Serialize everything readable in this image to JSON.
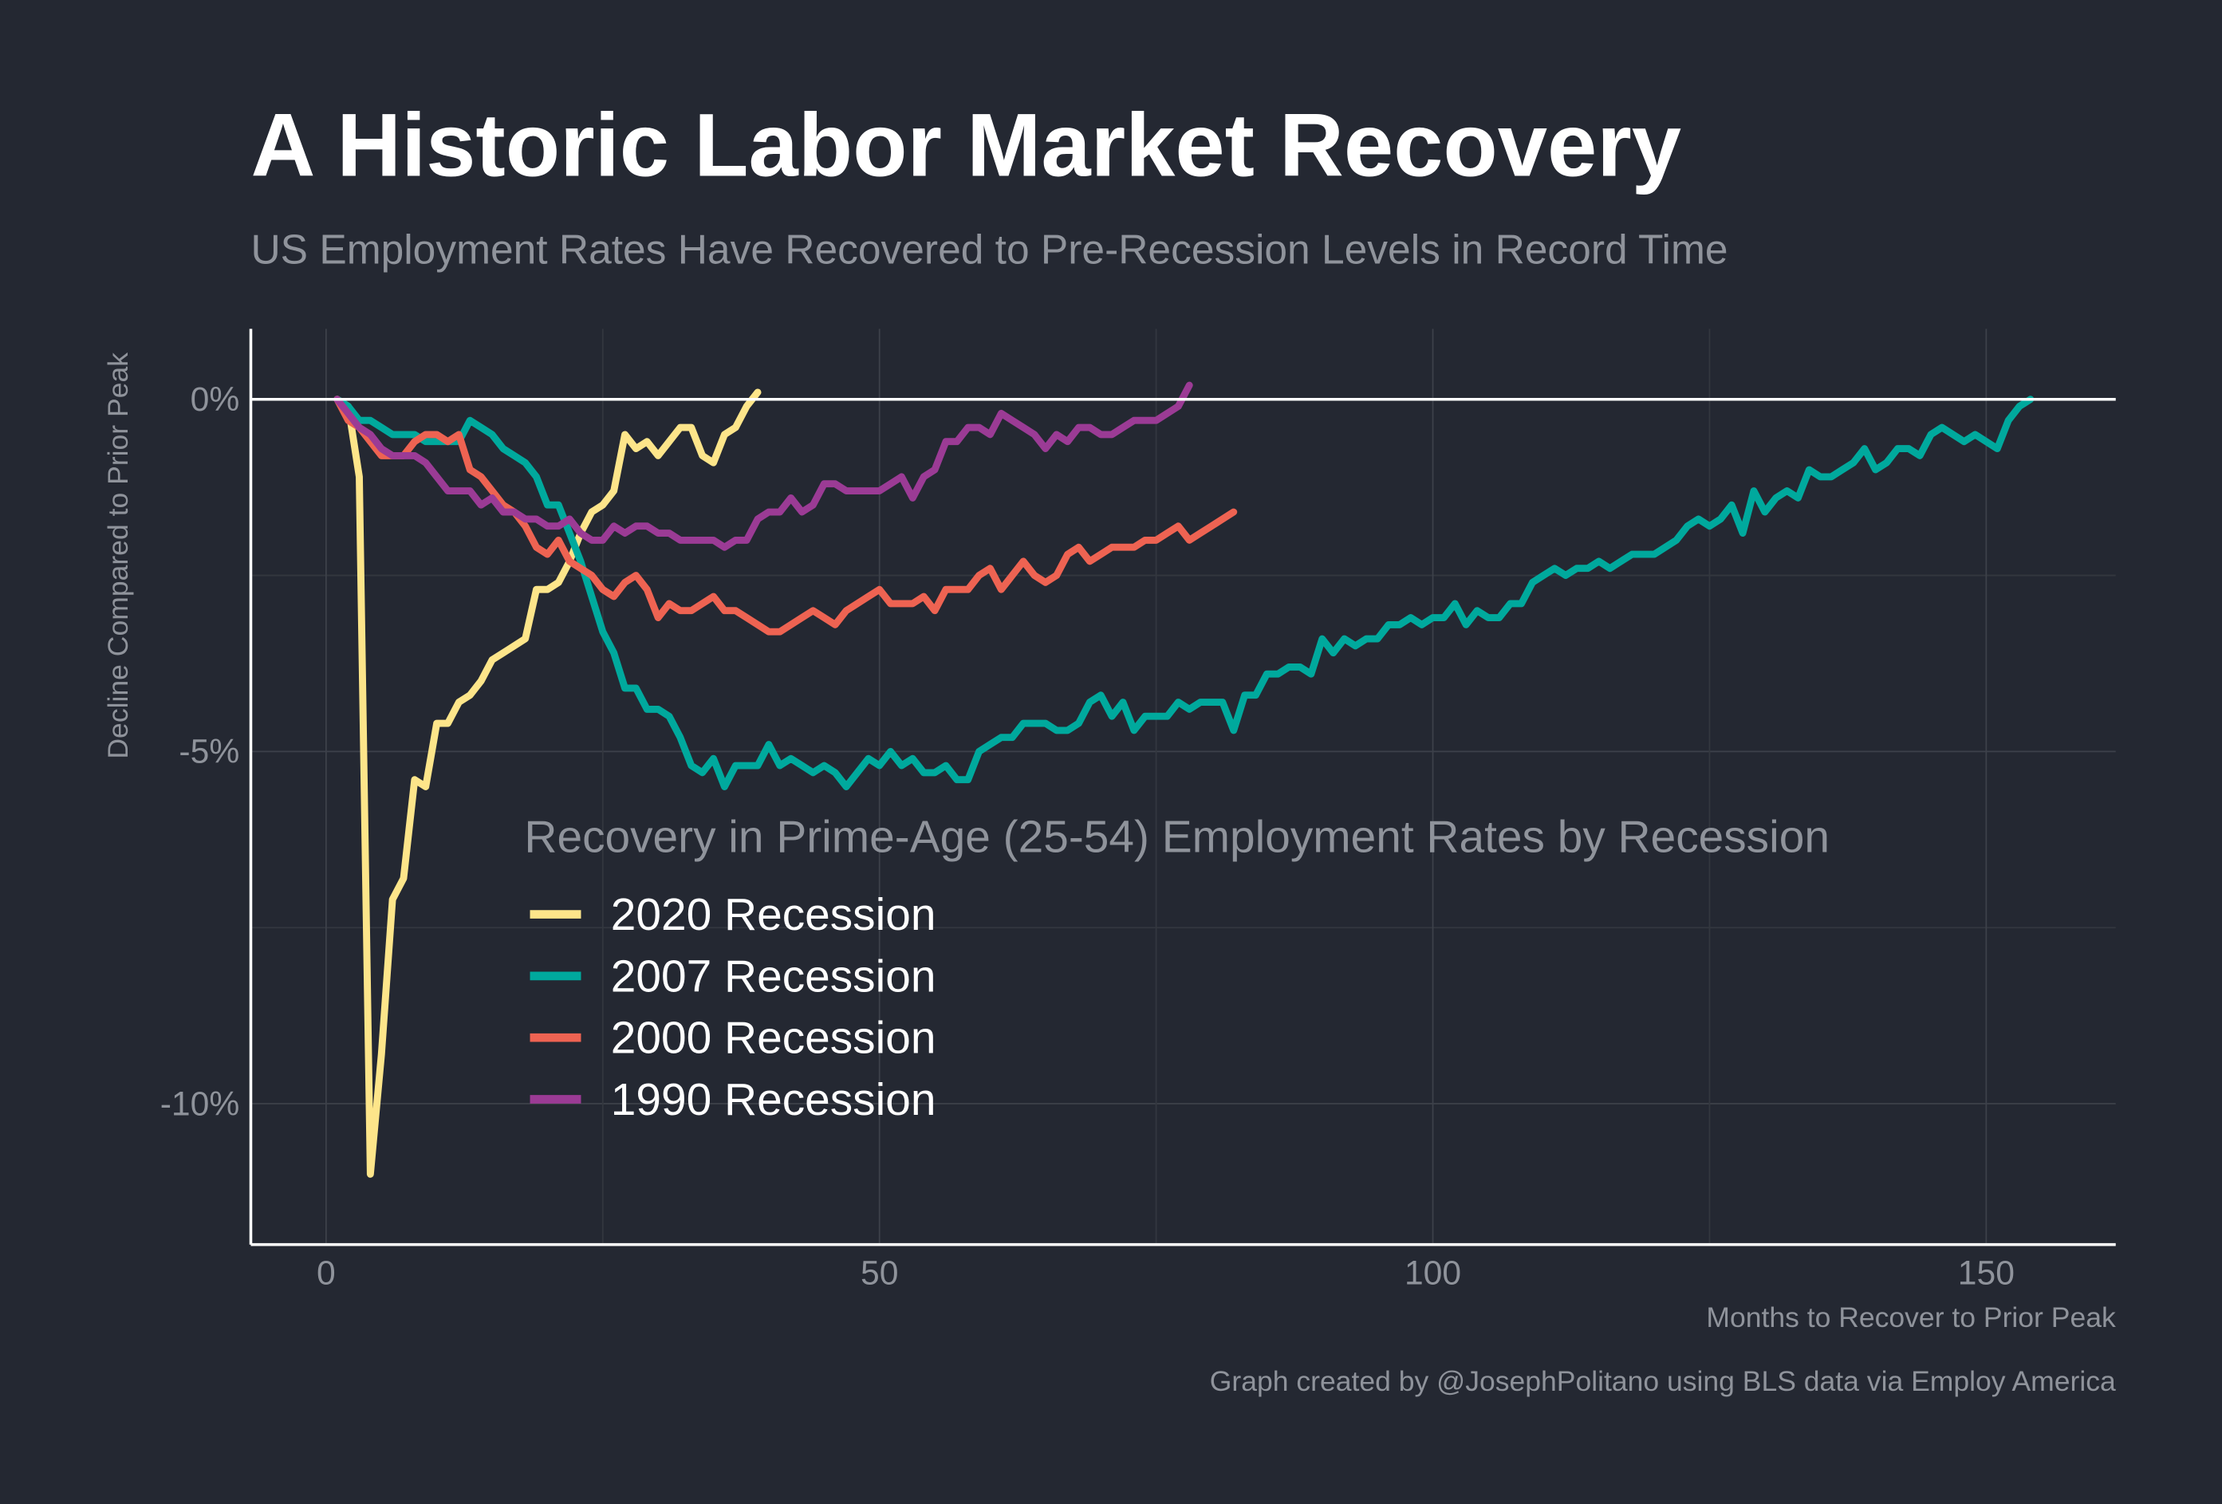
{
  "chart_data": {
    "type": "line",
    "title": "A Historic Labor Market Recovery",
    "subtitle": "US Employment Rates Have Recovered to Pre-Recession Levels in Record Time",
    "y_label": "Decline Compared to Prior Peak",
    "x_label": "Months to Recover to Prior Peak",
    "caption": "Graph created by @JosephPolitano using BLS data via Employ America",
    "legend_title": "Recovery in Prime-Age (25-54) Employment Rates by Recession",
    "legend_position": "center",
    "grid": true,
    "xlim": [
      -6.8,
      161.7
    ],
    "ylim": [
      -12,
      1
    ],
    "xticks": [
      0,
      50,
      100,
      150
    ],
    "yticks": [
      {
        "value": 0,
        "label": "0%"
      },
      {
        "value": -5,
        "label": "-5%"
      },
      {
        "value": -10,
        "label": "-10%"
      }
    ],
    "series": [
      {
        "name": "2020 Recession",
        "color": "#fde58a",
        "x": [
          1,
          2,
          3,
          4,
          5,
          6,
          7,
          8,
          9,
          10,
          11,
          12,
          13,
          14,
          15,
          16,
          17,
          18,
          19,
          20,
          21,
          22,
          23,
          24,
          25,
          26,
          27,
          28,
          29,
          30,
          31,
          32,
          33,
          34,
          35,
          36,
          37,
          38,
          39
        ],
        "values": [
          0,
          -0.1,
          -1.1,
          -11,
          -9.3,
          -7.1,
          -6.8,
          -5.4,
          -5.5,
          -4.6,
          -4.6,
          -4.3,
          -4.2,
          -4.0,
          -3.7,
          -3.6,
          -3.5,
          -3.4,
          -2.7,
          -2.7,
          -2.6,
          -2.3,
          -1.9,
          -1.6,
          -1.5,
          -1.3,
          -0.5,
          -0.7,
          -0.6,
          -0.8,
          -0.6,
          -0.4,
          -0.4,
          -0.8,
          -0.9,
          -0.5,
          -0.4,
          -0.1,
          0.1
        ]
      },
      {
        "name": "2007 Recession",
        "color": "#00a99d",
        "x": [
          1,
          2,
          3,
          4,
          5,
          6,
          7,
          8,
          9,
          10,
          11,
          12,
          13,
          14,
          15,
          16,
          17,
          18,
          19,
          20,
          21,
          22,
          23,
          24,
          25,
          26,
          27,
          28,
          29,
          30,
          31,
          32,
          33,
          34,
          35,
          36,
          37,
          38,
          39,
          40,
          41,
          42,
          43,
          44,
          45,
          46,
          47,
          48,
          49,
          50,
          51,
          52,
          53,
          54,
          55,
          56,
          57,
          58,
          59,
          60,
          61,
          62,
          63,
          64,
          65,
          66,
          67,
          68,
          69,
          70,
          71,
          72,
          73,
          74,
          75,
          76,
          77,
          78,
          79,
          80,
          81,
          82,
          83,
          84,
          85,
          86,
          87,
          88,
          89,
          90,
          91,
          92,
          93,
          94,
          95,
          96,
          97,
          98,
          99,
          100,
          101,
          102,
          103,
          104,
          105,
          106,
          107,
          108,
          109,
          110,
          111,
          112,
          113,
          114,
          115,
          116,
          117,
          118,
          119,
          120,
          121,
          122,
          123,
          124,
          125,
          126,
          127,
          128,
          129,
          130,
          131,
          132,
          133,
          134,
          135,
          136,
          137,
          138,
          139,
          140,
          141,
          142,
          143,
          144,
          145,
          146,
          147,
          148,
          149,
          150,
          151,
          152,
          153,
          154
        ],
        "values": [
          0,
          -0.1,
          -0.3,
          -0.3,
          -0.4,
          -0.5,
          -0.5,
          -0.5,
          -0.6,
          -0.6,
          -0.6,
          -0.6,
          -0.3,
          -0.4,
          -0.5,
          -0.7,
          -0.8,
          -0.9,
          -1.1,
          -1.5,
          -1.5,
          -1.9,
          -2.3,
          -2.8,
          -3.3,
          -3.6,
          -4.1,
          -4.1,
          -4.4,
          -4.4,
          -4.5,
          -4.8,
          -5.2,
          -5.3,
          -5.1,
          -5.5,
          -5.2,
          -5.2,
          -5.2,
          -4.9,
          -5.2,
          -5.1,
          -5.2,
          -5.3,
          -5.2,
          -5.3,
          -5.5,
          -5.3,
          -5.1,
          -5.2,
          -5.0,
          -5.2,
          -5.1,
          -5.3,
          -5.3,
          -5.2,
          -5.4,
          -5.4,
          -5.0,
          -4.9,
          -4.8,
          -4.8,
          -4.6,
          -4.6,
          -4.6,
          -4.7,
          -4.7,
          -4.6,
          -4.3,
          -4.2,
          -4.5,
          -4.3,
          -4.7,
          -4.5,
          -4.5,
          -4.5,
          -4.3,
          -4.4,
          -4.3,
          -4.3,
          -4.3,
          -4.7,
          -4.2,
          -4.2,
          -3.9,
          -3.9,
          -3.8,
          -3.8,
          -3.9,
          -3.4,
          -3.6,
          -3.4,
          -3.5,
          -3.4,
          -3.4,
          -3.2,
          -3.2,
          -3.1,
          -3.2,
          -3.1,
          -3.1,
          -2.9,
          -3.2,
          -3.0,
          -3.1,
          -3.1,
          -2.9,
          -2.9,
          -2.6,
          -2.5,
          -2.4,
          -2.5,
          -2.4,
          -2.4,
          -2.3,
          -2.4,
          -2.3,
          -2.2,
          -2.2,
          -2.2,
          -2.1,
          -2.0,
          -1.8,
          -1.7,
          -1.8,
          -1.7,
          -1.5,
          -1.9,
          -1.3,
          -1.6,
          -1.4,
          -1.3,
          -1.4,
          -1.0,
          -1.1,
          -1.1,
          -1.0,
          -0.9,
          -0.7,
          -1.0,
          -0.9,
          -0.7,
          -0.7,
          -0.8,
          -0.5,
          -0.4,
          -0.5,
          -0.6,
          -0.5,
          -0.6,
          -0.7,
          -0.3,
          -0.1,
          0
        ]
      },
      {
        "name": "2000 Recession",
        "color": "#ee6352",
        "x": [
          1,
          2,
          3,
          4,
          5,
          6,
          7,
          8,
          9,
          10,
          11,
          12,
          13,
          14,
          15,
          16,
          17,
          18,
          19,
          20,
          21,
          22,
          23,
          24,
          25,
          26,
          27,
          28,
          29,
          30,
          31,
          32,
          33,
          34,
          35,
          36,
          37,
          38,
          39,
          40,
          41,
          42,
          43,
          44,
          45,
          46,
          47,
          48,
          49,
          50,
          51,
          52,
          53,
          54,
          55,
          56,
          57,
          58,
          59,
          60,
          61,
          62,
          63,
          64,
          65,
          66,
          67,
          68,
          69,
          70,
          71,
          72,
          73,
          74,
          75,
          76,
          77,
          78,
          79,
          80,
          81,
          82
        ],
        "values": [
          0,
          -0.3,
          -0.4,
          -0.6,
          -0.8,
          -0.8,
          -0.8,
          -0.6,
          -0.5,
          -0.5,
          -0.6,
          -0.5,
          -1.0,
          -1.1,
          -1.3,
          -1.5,
          -1.6,
          -1.8,
          -2.1,
          -2.2,
          -2.0,
          -2.3,
          -2.4,
          -2.5,
          -2.7,
          -2.8,
          -2.6,
          -2.5,
          -2.7,
          -3.1,
          -2.9,
          -3.0,
          -3.0,
          -2.9,
          -2.8,
          -3.0,
          -3.0,
          -3.1,
          -3.2,
          -3.3,
          -3.3,
          -3.2,
          -3.1,
          -3.0,
          -3.1,
          -3.2,
          -3.0,
          -2.9,
          -2.8,
          -2.7,
          -2.9,
          -2.9,
          -2.9,
          -2.8,
          -3.0,
          -2.7,
          -2.7,
          -2.7,
          -2.5,
          -2.4,
          -2.7,
          -2.5,
          -2.3,
          -2.5,
          -2.6,
          -2.5,
          -2.2,
          -2.1,
          -2.3,
          -2.2,
          -2.1,
          -2.1,
          -2.1,
          -2.0,
          -2.0,
          -1.9,
          -1.8,
          -2.0,
          -1.9,
          -1.8,
          -1.7,
          -1.6
        ]
      },
      {
        "name": "1990 Recession",
        "color": "#9b3b95",
        "x": [
          1,
          2,
          3,
          4,
          5,
          6,
          7,
          8,
          9,
          10,
          11,
          12,
          13,
          14,
          15,
          16,
          17,
          18,
          19,
          20,
          21,
          22,
          23,
          24,
          25,
          26,
          27,
          28,
          29,
          30,
          31,
          32,
          33,
          34,
          35,
          36,
          37,
          38,
          39,
          40,
          41,
          42,
          43,
          44,
          45,
          46,
          47,
          48,
          49,
          50,
          51,
          52,
          53,
          54,
          55,
          56,
          57,
          58,
          59,
          60,
          61,
          62,
          63,
          64,
          65,
          66,
          67,
          68,
          69,
          70,
          71,
          72,
          73,
          74,
          75,
          76,
          77,
          78
        ],
        "values": [
          0,
          -0.2,
          -0.4,
          -0.5,
          -0.7,
          -0.8,
          -0.8,
          -0.8,
          -0.9,
          -1.1,
          -1.3,
          -1.3,
          -1.3,
          -1.5,
          -1.4,
          -1.6,
          -1.6,
          -1.7,
          -1.7,
          -1.8,
          -1.8,
          -1.7,
          -1.9,
          -2.0,
          -2.0,
          -1.8,
          -1.9,
          -1.8,
          -1.8,
          -1.9,
          -1.9,
          -2.0,
          -2.0,
          -2.0,
          -2.0,
          -2.1,
          -2.0,
          -2.0,
          -1.7,
          -1.6,
          -1.6,
          -1.4,
          -1.6,
          -1.5,
          -1.2,
          -1.2,
          -1.3,
          -1.3,
          -1.3,
          -1.3,
          -1.2,
          -1.1,
          -1.4,
          -1.1,
          -1.0,
          -0.6,
          -0.6,
          -0.4,
          -0.4,
          -0.5,
          -0.2,
          -0.3,
          -0.4,
          -0.5,
          -0.7,
          -0.5,
          -0.6,
          -0.4,
          -0.4,
          -0.5,
          -0.5,
          -0.4,
          -0.3,
          -0.3,
          -0.3,
          -0.2,
          -0.1,
          0.2
        ]
      }
    ]
  }
}
